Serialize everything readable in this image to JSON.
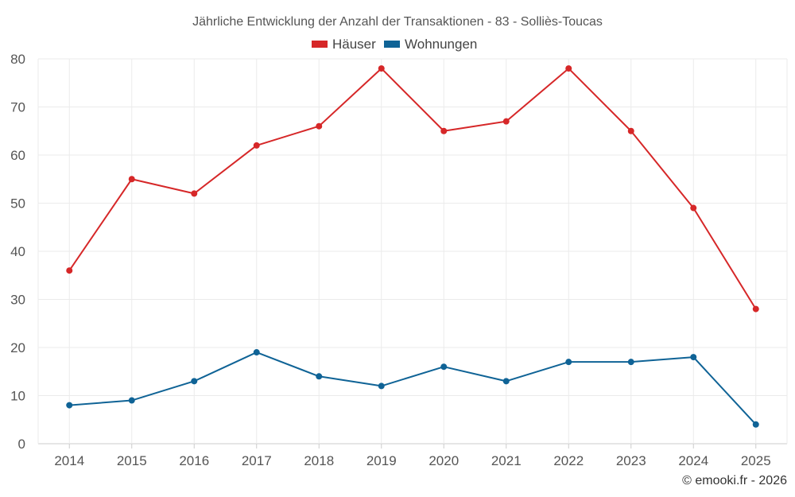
{
  "chart_data": {
    "type": "line",
    "title": "Jährliche Entwicklung der Anzahl der Transaktionen - 83 - Solliès-Toucas",
    "categories": [
      "2014",
      "2015",
      "2016",
      "2017",
      "2018",
      "2019",
      "2020",
      "2021",
      "2022",
      "2023",
      "2024",
      "2025"
    ],
    "series": [
      {
        "name": "Häuser",
        "color": "#d62728",
        "values": [
          36,
          55,
          52,
          62,
          66,
          78,
          65,
          67,
          78,
          65,
          49,
          28
        ]
      },
      {
        "name": "Wohnungen",
        "color": "#0f6396",
        "values": [
          8,
          9,
          13,
          19,
          14,
          12,
          16,
          13,
          17,
          17,
          18,
          4
        ]
      }
    ],
    "ylim": [
      0,
      80
    ],
    "yticks": [
      0,
      10,
      20,
      30,
      40,
      50,
      60,
      70,
      80
    ],
    "xlabel": "",
    "ylabel": "",
    "grid": true,
    "legend_position": "top-center"
  },
  "credit": "© emooki.fr - 2026"
}
